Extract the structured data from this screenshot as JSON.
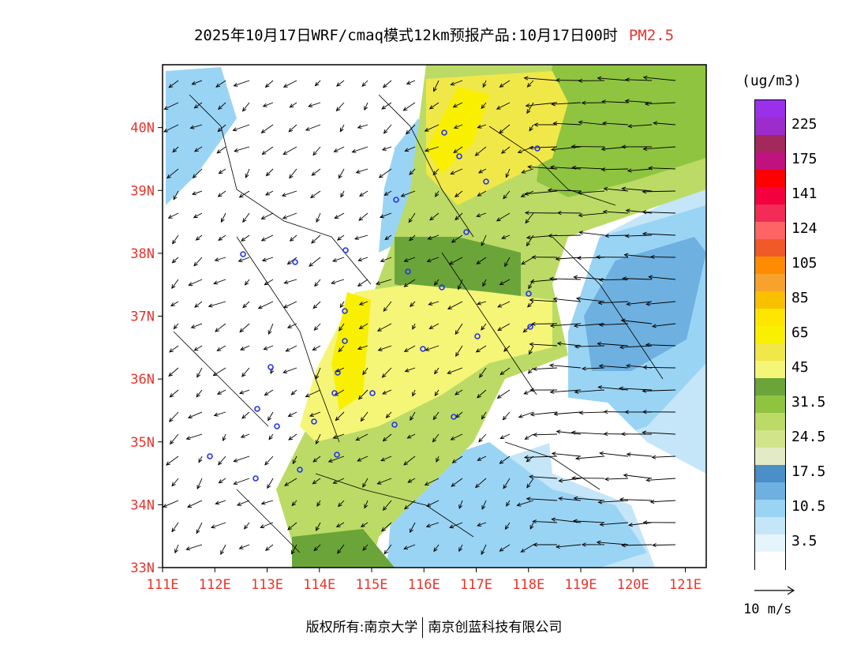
{
  "header": {
    "title": "2025年10月17日WRF/cmaq模式12km预报产品:10月17日00时",
    "variable": "PM2.5"
  },
  "map": {
    "lat_labels": [
      "40N",
      "39N",
      "38N",
      "37N",
      "36N",
      "35N",
      "34N",
      "33N"
    ],
    "lon_labels": [
      "111E",
      "112E",
      "113E",
      "114E",
      "115E",
      "116E",
      "117E",
      "118E",
      "119E",
      "120E",
      "121E"
    ],
    "lat_range": [
      33,
      41
    ],
    "lon_range": [
      111,
      121.4
    ],
    "cities_count": 30
  },
  "colorbar": {
    "unit": "(ug/m3)",
    "colors": [
      "#9b30ea",
      "#9c2ccb",
      "#a3285c",
      "#c0127e",
      "#ff0000",
      "#f5003f",
      "#f22b57",
      "#ff6464",
      "#f05a28",
      "#ff8c00",
      "#f7a22c",
      "#f9c000",
      "#ffe600",
      "#f8f000",
      "#f0e848",
      "#f5f578",
      "#6ba53a",
      "#8fc440",
      "#bbdb66",
      "#d2e48a",
      "#e2ebc4",
      "#4b8fc8",
      "#6eb0e0",
      "#9ad4f4",
      "#c4e6f8",
      "#e6f4fc",
      "#ffffff"
    ],
    "labels": [
      "225",
      "175",
      "141",
      "124",
      "105",
      "85",
      "65",
      "45",
      "31.5",
      "24.5",
      "17.5",
      "10.5",
      "3.5"
    ],
    "label_segments": [
      1,
      3,
      5,
      7,
      9,
      11,
      13,
      15,
      17,
      19,
      21,
      23,
      25
    ]
  },
  "wind_vector": {
    "label": "10 m/s"
  },
  "footer": {
    "copyright": "版权所有:南京大学",
    "company": "南京创蓝科技有限公司"
  }
}
